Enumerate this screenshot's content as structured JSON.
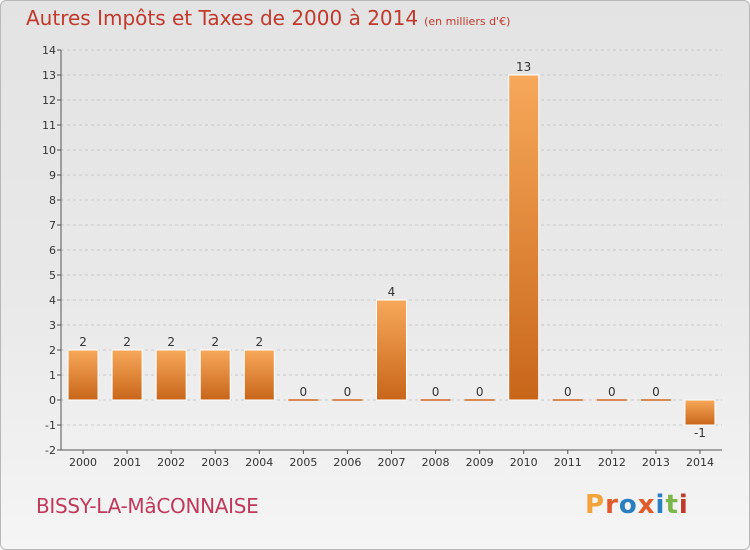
{
  "header": {
    "title": "Autres Impôts et Taxes de 2000 à 2014",
    "unit": "(en milliers d'€)"
  },
  "footer": {
    "commune": "BISSY-LA-MâCONNAISE"
  },
  "brand": {
    "text": "Proxiti",
    "letters": [
      "P",
      "r",
      "o",
      "x",
      "i",
      "t",
      "i"
    ]
  },
  "colors": {
    "bar_light": "#f6a050",
    "bar_dark": "#c8661a",
    "grid": "#c8c8c8",
    "axis": "#555555",
    "title": "#c0392b"
  },
  "chart_data": {
    "type": "bar",
    "title": "Autres Impôts et Taxes de 2000 à 2014",
    "subtitle": "(en milliers d'€)",
    "xlabel": "",
    "ylabel": "",
    "categories": [
      "2000",
      "2001",
      "2002",
      "2003",
      "2004",
      "2005",
      "2006",
      "2007",
      "2008",
      "2009",
      "2010",
      "2011",
      "2012",
      "2013",
      "2014"
    ],
    "values": [
      2,
      2,
      2,
      2,
      2,
      0,
      0,
      4,
      0,
      0,
      13,
      0,
      0,
      0,
      -1
    ],
    "value_labels": [
      "2",
      "2",
      "2",
      "2",
      "2",
      "0",
      "0",
      "4",
      "0",
      "0",
      "13",
      "0",
      "0",
      "0",
      "-1"
    ],
    "ylim": [
      -2,
      14
    ],
    "yticks": [
      "-2",
      "-1",
      "0",
      "1",
      "2",
      "3",
      "4",
      "5",
      "6",
      "7",
      "8",
      "9",
      "10",
      "11",
      "12",
      "13",
      "14"
    ],
    "grid": "horizontal dashed",
    "legend": "none"
  }
}
